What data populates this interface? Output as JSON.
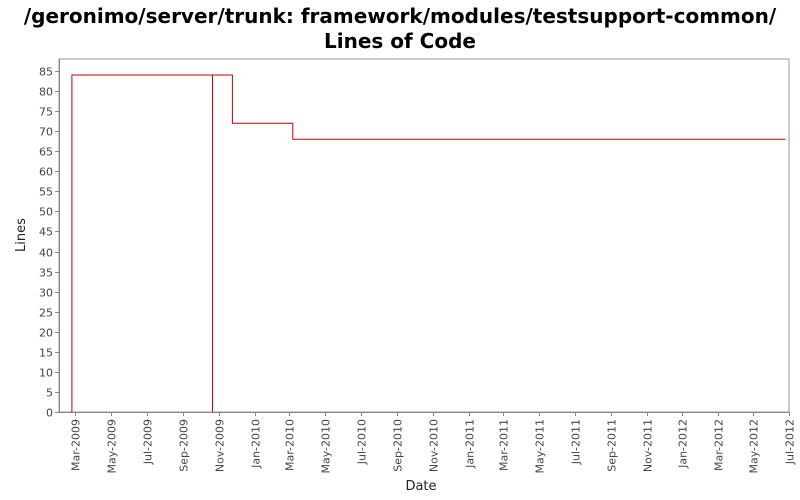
{
  "chart_data": {
    "type": "line",
    "title": "/geronimo/server/trunk: framework/modules/testsupport-common/ Lines of Code",
    "xlabel": "Date",
    "ylabel": "Lines",
    "x_start": "2009-02-01",
    "x_end": "2012-07-01",
    "ylim": [
      0,
      88
    ],
    "y_ticks": [
      0,
      5,
      10,
      15,
      20,
      25,
      30,
      35,
      40,
      45,
      50,
      55,
      60,
      65,
      70,
      75,
      80,
      85
    ],
    "x_ticks": [
      {
        "date": "2009-03-01",
        "label": "Mar-2009"
      },
      {
        "date": "2009-05-01",
        "label": "May-2009"
      },
      {
        "date": "2009-07-01",
        "label": "Jul-2009"
      },
      {
        "date": "2009-09-01",
        "label": "Sep-2009"
      },
      {
        "date": "2009-11-01",
        "label": "Nov-2009"
      },
      {
        "date": "2010-01-01",
        "label": "Jan-2010"
      },
      {
        "date": "2010-03-01",
        "label": "Mar-2010"
      },
      {
        "date": "2010-05-01",
        "label": "May-2010"
      },
      {
        "date": "2010-07-01",
        "label": "Jul-2010"
      },
      {
        "date": "2010-09-01",
        "label": "Sep-2010"
      },
      {
        "date": "2010-11-01",
        "label": "Nov-2010"
      },
      {
        "date": "2011-01-01",
        "label": "Jan-2011"
      },
      {
        "date": "2011-03-01",
        "label": "Mar-2011"
      },
      {
        "date": "2011-05-01",
        "label": "May-2011"
      },
      {
        "date": "2011-07-01",
        "label": "Jul-2011"
      },
      {
        "date": "2011-09-01",
        "label": "Sep-2011"
      },
      {
        "date": "2011-11-01",
        "label": "Nov-2011"
      },
      {
        "date": "2012-01-01",
        "label": "Jan-2012"
      },
      {
        "date": "2012-03-01",
        "label": "Mar-2012"
      },
      {
        "date": "2012-05-01",
        "label": "May-2012"
      },
      {
        "date": "2012-07-01",
        "label": "Jul-2012"
      }
    ],
    "grid": false,
    "legend": "none",
    "series": [
      {
        "color": "#cc0000",
        "step": true,
        "points": [
          {
            "x": "2009-02-23",
            "y": 0
          },
          {
            "x": "2009-02-23",
            "y": 84
          },
          {
            "x": "2009-10-21",
            "y": 84
          },
          {
            "x": "2009-10-21",
            "y": 0
          },
          {
            "x": "2009-10-21",
            "y": 84
          },
          {
            "x": "2009-11-24",
            "y": 84
          },
          {
            "x": "2009-11-24",
            "y": 72
          },
          {
            "x": "2010-03-07",
            "y": 72
          },
          {
            "x": "2010-03-07",
            "y": 68
          },
          {
            "x": "2012-06-25",
            "y": 68
          }
        ]
      }
    ]
  }
}
